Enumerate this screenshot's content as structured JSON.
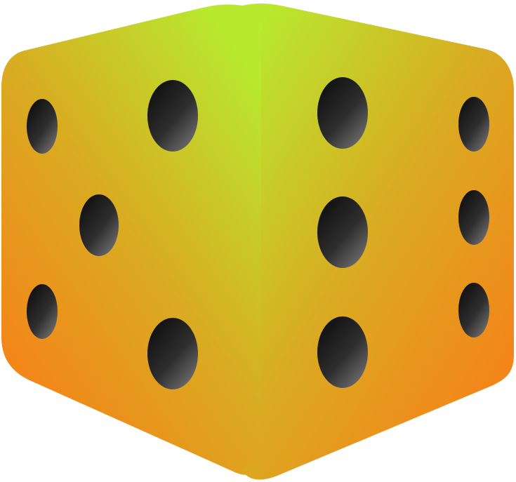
{
  "image": {
    "subject": "dice-icon",
    "background_color": "#ffffff"
  },
  "die": {
    "faces": [
      {
        "name": "left-face",
        "pip_count": 5
      },
      {
        "name": "right-face",
        "pip_count": 6
      }
    ],
    "colors": {
      "gradient_top": "#b8e92f",
      "gradient_mid": "#d8ad22",
      "gradient_bottom": "#fb7b16",
      "pip_dark": "#111111",
      "pip_light": "#6e6e6e"
    }
  }
}
